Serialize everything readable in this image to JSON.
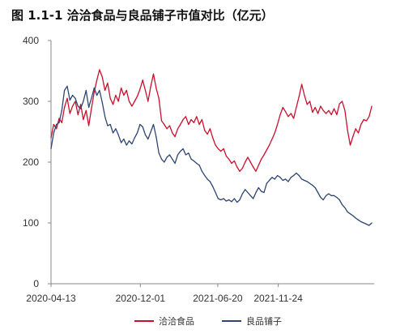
{
  "title": "图 1.1-1 洽洽食品与良品铺子市值对比（亿元）",
  "chart_data": {
    "type": "line",
    "title": "图 1.1-1 洽洽食品与良品铺子市值对比（亿元）",
    "xlabel": "",
    "ylabel": "",
    "ylim": [
      0,
      400
    ],
    "yticks": [
      0,
      100,
      200,
      300,
      400
    ],
    "ytick_labels": [
      "0",
      "100",
      "200",
      "300",
      "400"
    ],
    "xlim": [
      "2020-04-13",
      "2022-07-31"
    ],
    "xticks": [
      "2020-04-13",
      "2020-12-01",
      "2021-06-20",
      "2021-11-24"
    ],
    "grid": false,
    "legend_position": "bottom-center",
    "series": [
      {
        "name": "洽洽食品",
        "color": "#c8102e",
        "points": [
          [
            "2020-04-13",
            240
          ],
          [
            "2020-04-20",
            262
          ],
          [
            "2020-04-27",
            255
          ],
          [
            "2020-05-04",
            272
          ],
          [
            "2020-05-11",
            265
          ],
          [
            "2020-05-18",
            290
          ],
          [
            "2020-05-25",
            305
          ],
          [
            "2020-06-01",
            280
          ],
          [
            "2020-06-08",
            292
          ],
          [
            "2020-06-15",
            300
          ],
          [
            "2020-06-22",
            278
          ],
          [
            "2020-06-29",
            295
          ],
          [
            "2020-07-06",
            270
          ],
          [
            "2020-07-13",
            285
          ],
          [
            "2020-07-20",
            260
          ],
          [
            "2020-07-27",
            288
          ],
          [
            "2020-08-03",
            315
          ],
          [
            "2020-08-10",
            335
          ],
          [
            "2020-08-17",
            352
          ],
          [
            "2020-08-24",
            340
          ],
          [
            "2020-08-31",
            318
          ],
          [
            "2020-09-07",
            330
          ],
          [
            "2020-09-14",
            305
          ],
          [
            "2020-09-21",
            295
          ],
          [
            "2020-09-28",
            310
          ],
          [
            "2020-10-05",
            300
          ],
          [
            "2020-10-12",
            322
          ],
          [
            "2020-10-19",
            310
          ],
          [
            "2020-10-26",
            318
          ],
          [
            "2020-11-02",
            300
          ],
          [
            "2020-11-09",
            292
          ],
          [
            "2020-11-16",
            300
          ],
          [
            "2020-11-23",
            308
          ],
          [
            "2020-11-30",
            320
          ],
          [
            "2020-12-07",
            335
          ],
          [
            "2020-12-14",
            318
          ],
          [
            "2020-12-21",
            300
          ],
          [
            "2020-12-28",
            325
          ],
          [
            "2021-01-04",
            345
          ],
          [
            "2021-01-11",
            322
          ],
          [
            "2021-01-18",
            305
          ],
          [
            "2021-01-25",
            268
          ],
          [
            "2021-02-01",
            262
          ],
          [
            "2021-02-08",
            255
          ],
          [
            "2021-02-15",
            260
          ],
          [
            "2021-02-22",
            248
          ],
          [
            "2021-03-01",
            242
          ],
          [
            "2021-03-08",
            255
          ],
          [
            "2021-03-15",
            262
          ],
          [
            "2021-03-22",
            270
          ],
          [
            "2021-03-29",
            275
          ],
          [
            "2021-04-05",
            262
          ],
          [
            "2021-04-12",
            270
          ],
          [
            "2021-04-19",
            265
          ],
          [
            "2021-04-26",
            275
          ],
          [
            "2021-05-03",
            262
          ],
          [
            "2021-05-10",
            270
          ],
          [
            "2021-05-17",
            252
          ],
          [
            "2021-05-24",
            246
          ],
          [
            "2021-05-31",
            255
          ],
          [
            "2021-06-07",
            240
          ],
          [
            "2021-06-14",
            228
          ],
          [
            "2021-06-21",
            222
          ],
          [
            "2021-06-28",
            218
          ],
          [
            "2021-07-05",
            222
          ],
          [
            "2021-07-12",
            210
          ],
          [
            "2021-07-19",
            205
          ],
          [
            "2021-07-26",
            198
          ],
          [
            "2021-08-02",
            202
          ],
          [
            "2021-08-09",
            192
          ],
          [
            "2021-08-16",
            185
          ],
          [
            "2021-08-23",
            190
          ],
          [
            "2021-08-30",
            200
          ],
          [
            "2021-09-06",
            208
          ],
          [
            "2021-09-13",
            200
          ],
          [
            "2021-09-20",
            192
          ],
          [
            "2021-09-27",
            185
          ],
          [
            "2021-10-04",
            195
          ],
          [
            "2021-10-11",
            205
          ],
          [
            "2021-10-18",
            212
          ],
          [
            "2021-10-25",
            220
          ],
          [
            "2021-11-01",
            228
          ],
          [
            "2021-11-08",
            238
          ],
          [
            "2021-11-15",
            248
          ],
          [
            "2021-11-22",
            262
          ],
          [
            "2021-11-29",
            278
          ],
          [
            "2021-12-06",
            290
          ],
          [
            "2021-12-13",
            283
          ],
          [
            "2021-12-20",
            275
          ],
          [
            "2021-12-27",
            280
          ],
          [
            "2022-01-03",
            272
          ],
          [
            "2022-01-10",
            290
          ],
          [
            "2022-01-17",
            308
          ],
          [
            "2022-01-24",
            328
          ],
          [
            "2022-01-31",
            310
          ],
          [
            "2022-02-07",
            295
          ],
          [
            "2022-02-14",
            300
          ],
          [
            "2022-02-21",
            282
          ],
          [
            "2022-02-28",
            290
          ],
          [
            "2022-03-07",
            280
          ],
          [
            "2022-03-14",
            292
          ],
          [
            "2022-03-21",
            285
          ],
          [
            "2022-03-28",
            280
          ],
          [
            "2022-04-04",
            285
          ],
          [
            "2022-04-11",
            278
          ],
          [
            "2022-04-18",
            288
          ],
          [
            "2022-04-25",
            278
          ],
          [
            "2022-05-02",
            296
          ],
          [
            "2022-05-09",
            300
          ],
          [
            "2022-05-16",
            285
          ],
          [
            "2022-05-23",
            252
          ],
          [
            "2022-05-30",
            228
          ],
          [
            "2022-06-06",
            242
          ],
          [
            "2022-06-13",
            255
          ],
          [
            "2022-06-20",
            248
          ],
          [
            "2022-06-27",
            262
          ],
          [
            "2022-07-04",
            270
          ],
          [
            "2022-07-11",
            268
          ],
          [
            "2022-07-18",
            275
          ],
          [
            "2022-07-25",
            292
          ]
        ]
      },
      {
        "name": "良品铺子",
        "color": "#2f4572",
        "points": [
          [
            "2020-04-13",
            222
          ],
          [
            "2020-04-20",
            248
          ],
          [
            "2020-04-27",
            262
          ],
          [
            "2020-05-04",
            265
          ],
          [
            "2020-05-11",
            285
          ],
          [
            "2020-05-18",
            318
          ],
          [
            "2020-05-25",
            325
          ],
          [
            "2020-06-01",
            302
          ],
          [
            "2020-06-08",
            310
          ],
          [
            "2020-06-15",
            305
          ],
          [
            "2020-06-22",
            292
          ],
          [
            "2020-06-29",
            288
          ],
          [
            "2020-07-06",
            300
          ],
          [
            "2020-07-13",
            318
          ],
          [
            "2020-07-20",
            290
          ],
          [
            "2020-07-27",
            305
          ],
          [
            "2020-08-03",
            322
          ],
          [
            "2020-08-10",
            310
          ],
          [
            "2020-08-17",
            318
          ],
          [
            "2020-08-24",
            298
          ],
          [
            "2020-08-31",
            275
          ],
          [
            "2020-09-07",
            260
          ],
          [
            "2020-09-14",
            262
          ],
          [
            "2020-09-21",
            248
          ],
          [
            "2020-09-28",
            255
          ],
          [
            "2020-10-05",
            245
          ],
          [
            "2020-10-12",
            232
          ],
          [
            "2020-10-19",
            238
          ],
          [
            "2020-10-26",
            228
          ],
          [
            "2020-11-02",
            235
          ],
          [
            "2020-11-09",
            230
          ],
          [
            "2020-11-16",
            240
          ],
          [
            "2020-11-23",
            248
          ],
          [
            "2020-11-30",
            262
          ],
          [
            "2020-12-07",
            258
          ],
          [
            "2020-12-14",
            245
          ],
          [
            "2020-12-21",
            238
          ],
          [
            "2020-12-28",
            250
          ],
          [
            "2021-01-04",
            262
          ],
          [
            "2021-01-11",
            242
          ],
          [
            "2021-01-18",
            215
          ],
          [
            "2021-01-25",
            205
          ],
          [
            "2021-02-01",
            200
          ],
          [
            "2021-02-08",
            208
          ],
          [
            "2021-02-15",
            212
          ],
          [
            "2021-02-22",
            205
          ],
          [
            "2021-03-01",
            198
          ],
          [
            "2021-03-08",
            212
          ],
          [
            "2021-03-15",
            218
          ],
          [
            "2021-03-22",
            222
          ],
          [
            "2021-03-29",
            212
          ],
          [
            "2021-04-05",
            215
          ],
          [
            "2021-04-12",
            205
          ],
          [
            "2021-04-19",
            202
          ],
          [
            "2021-04-26",
            198
          ],
          [
            "2021-05-03",
            195
          ],
          [
            "2021-05-10",
            185
          ],
          [
            "2021-05-17",
            178
          ],
          [
            "2021-05-24",
            172
          ],
          [
            "2021-05-31",
            168
          ],
          [
            "2021-06-07",
            160
          ],
          [
            "2021-06-14",
            150
          ],
          [
            "2021-06-21",
            140
          ],
          [
            "2021-06-28",
            138
          ],
          [
            "2021-07-05",
            140
          ],
          [
            "2021-07-12",
            136
          ],
          [
            "2021-07-19",
            138
          ],
          [
            "2021-07-26",
            135
          ],
          [
            "2021-08-02",
            140
          ],
          [
            "2021-08-09",
            134
          ],
          [
            "2021-08-16",
            138
          ],
          [
            "2021-08-23",
            148
          ],
          [
            "2021-08-30",
            155
          ],
          [
            "2021-09-06",
            150
          ],
          [
            "2021-09-13",
            145
          ],
          [
            "2021-09-20",
            140
          ],
          [
            "2021-09-27",
            150
          ],
          [
            "2021-10-04",
            158
          ],
          [
            "2021-10-11",
            152
          ],
          [
            "2021-10-18",
            150
          ],
          [
            "2021-10-25",
            165
          ],
          [
            "2021-11-01",
            170
          ],
          [
            "2021-11-08",
            175
          ],
          [
            "2021-11-15",
            172
          ],
          [
            "2021-11-22",
            178
          ],
          [
            "2021-11-29",
            175
          ],
          [
            "2021-12-06",
            170
          ],
          [
            "2021-12-13",
            172
          ],
          [
            "2021-12-20",
            168
          ],
          [
            "2021-12-27",
            175
          ],
          [
            "2022-01-03",
            178
          ],
          [
            "2022-01-10",
            182
          ],
          [
            "2022-01-17",
            178
          ],
          [
            "2022-01-24",
            172
          ],
          [
            "2022-01-31",
            170
          ],
          [
            "2022-02-07",
            168
          ],
          [
            "2022-02-14",
            165
          ],
          [
            "2022-02-21",
            162
          ],
          [
            "2022-02-28",
            158
          ],
          [
            "2022-03-07",
            150
          ],
          [
            "2022-03-14",
            142
          ],
          [
            "2022-03-21",
            138
          ],
          [
            "2022-03-28",
            145
          ],
          [
            "2022-04-04",
            148
          ],
          [
            "2022-04-11",
            145
          ],
          [
            "2022-04-18",
            145
          ],
          [
            "2022-04-25",
            142
          ],
          [
            "2022-05-02",
            138
          ],
          [
            "2022-05-09",
            130
          ],
          [
            "2022-05-16",
            125
          ],
          [
            "2022-05-23",
            118
          ],
          [
            "2022-05-30",
            115
          ],
          [
            "2022-06-06",
            112
          ],
          [
            "2022-06-13",
            108
          ],
          [
            "2022-06-20",
            105
          ],
          [
            "2022-06-27",
            102
          ],
          [
            "2022-07-04",
            100
          ],
          [
            "2022-07-11",
            98
          ],
          [
            "2022-07-18",
            96
          ],
          [
            "2022-07-25",
            100
          ]
        ]
      }
    ]
  }
}
